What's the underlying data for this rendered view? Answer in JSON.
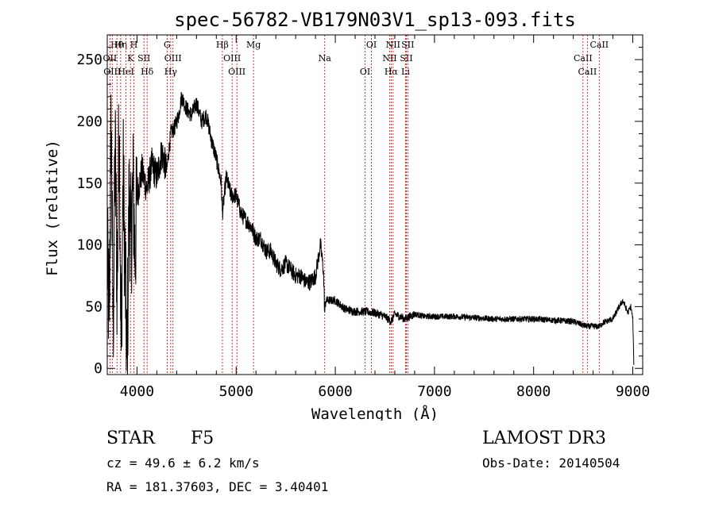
{
  "chart_data": {
    "type": "line",
    "title": "spec-56782-VB179N03V1_sp13-093.fits",
    "xlabel": "Wavelength (Å)",
    "ylabel": "Flux (relative)",
    "xlim": [
      3700,
      9100
    ],
    "ylim": [
      -5,
      270
    ],
    "xticks": [
      4000,
      5000,
      6000,
      7000,
      8000,
      9000
    ],
    "yticks": [
      0,
      50,
      100,
      150,
      200,
      250
    ],
    "grid": false,
    "line_colors": {
      "spectrum": "#000000",
      "lines": "#cc0000"
    },
    "series": [
      {
        "name": "flux",
        "x": [
          3700,
          3720,
          3740,
          3760,
          3780,
          3800,
          3820,
          3840,
          3860,
          3880,
          3900,
          3920,
          3940,
          3960,
          3980,
          4000,
          4050,
          4100,
          4150,
          4200,
          4250,
          4300,
          4340,
          4380,
          4420,
          4450,
          4500,
          4550,
          4600,
          4650,
          4700,
          4750,
          4800,
          4850,
          4861,
          4900,
          4950,
          5000,
          5050,
          5100,
          5150,
          5200,
          5250,
          5300,
          5350,
          5400,
          5450,
          5500,
          5550,
          5600,
          5650,
          5700,
          5750,
          5800,
          5850,
          5880,
          5893,
          5905,
          5950,
          6000,
          6100,
          6200,
          6300,
          6400,
          6500,
          6563,
          6600,
          6700,
          6800,
          6900,
          7000,
          7200,
          7400,
          7600,
          7800,
          8000,
          8200,
          8400,
          8498,
          8542,
          8662,
          8700,
          8800,
          8850,
          8900,
          8950,
          8980,
          9000,
          9010
        ],
        "y": [
          90,
          40,
          200,
          30,
          180,
          60,
          210,
          10,
          160,
          80,
          0,
          140,
          100,
          150,
          90,
          140,
          160,
          145,
          165,
          155,
          175,
          160,
          190,
          195,
          205,
          220,
          210,
          205,
          215,
          200,
          205,
          185,
          170,
          150,
          125,
          155,
          140,
          140,
          125,
          120,
          115,
          105,
          105,
          95,
          95,
          85,
          80,
          85,
          80,
          75,
          75,
          70,
          70,
          75,
          100,
          80,
          45,
          55,
          55,
          55,
          48,
          46,
          46,
          45,
          42,
          38,
          44,
          40,
          44,
          42,
          42,
          42,
          41,
          40,
          40,
          40,
          39,
          38,
          35,
          34,
          34,
          37,
          40,
          48,
          55,
          45,
          50,
          40,
          5
        ]
      }
    ],
    "lines": [
      {
        "name": "Hθ",
        "x": 3798
      },
      {
        "name": "OII",
        "x": 3727
      },
      {
        "name": "OIII",
        "x": 3750
      },
      {
        "name": "Hη",
        "x": 3835
      },
      {
        "name": "K",
        "x": 3934
      },
      {
        "name": "HeI",
        "x": 3889
      },
      {
        "name": "H",
        "x": 3969
      },
      {
        "name": "SII",
        "x": 4070
      },
      {
        "name": "Hδ",
        "x": 4102
      },
      {
        "name": "G",
        "x": 4304
      },
      {
        "name": "OIII",
        "x": 4363
      },
      {
        "name": "Hγ",
        "x": 4340
      },
      {
        "name": "Hβ",
        "x": 4861
      },
      {
        "name": "OIII",
        "x": 4959
      },
      {
        "name": "OIII",
        "x": 5007
      },
      {
        "name": "Mg",
        "x": 5175
      },
      {
        "name": "Na",
        "x": 5893
      },
      {
        "name": "OI",
        "x": 6300
      },
      {
        "name": "OI",
        "x": 6364
      },
      {
        "name": "NII",
        "x": 6548
      },
      {
        "name": "Hα",
        "x": 6563
      },
      {
        "name": "NII",
        "x": 6583
      },
      {
        "name": "SII",
        "x": 6716
      },
      {
        "name": "Li",
        "x": 6708
      },
      {
        "name": "SII",
        "x": 6731
      },
      {
        "name": "CaII",
        "x": 8498
      },
      {
        "name": "CaII",
        "x": 8542
      },
      {
        "name": "CaII",
        "x": 8662
      }
    ]
  },
  "info": {
    "class_label": "STAR",
    "subclass": "F5",
    "survey": "LAMOST DR3",
    "cz": "cz = 49.6 ± 6.2 km/s",
    "obs_date": "Obs-Date: 20140504",
    "coords": "RA = 181.37603, DEC =   3.40401"
  }
}
